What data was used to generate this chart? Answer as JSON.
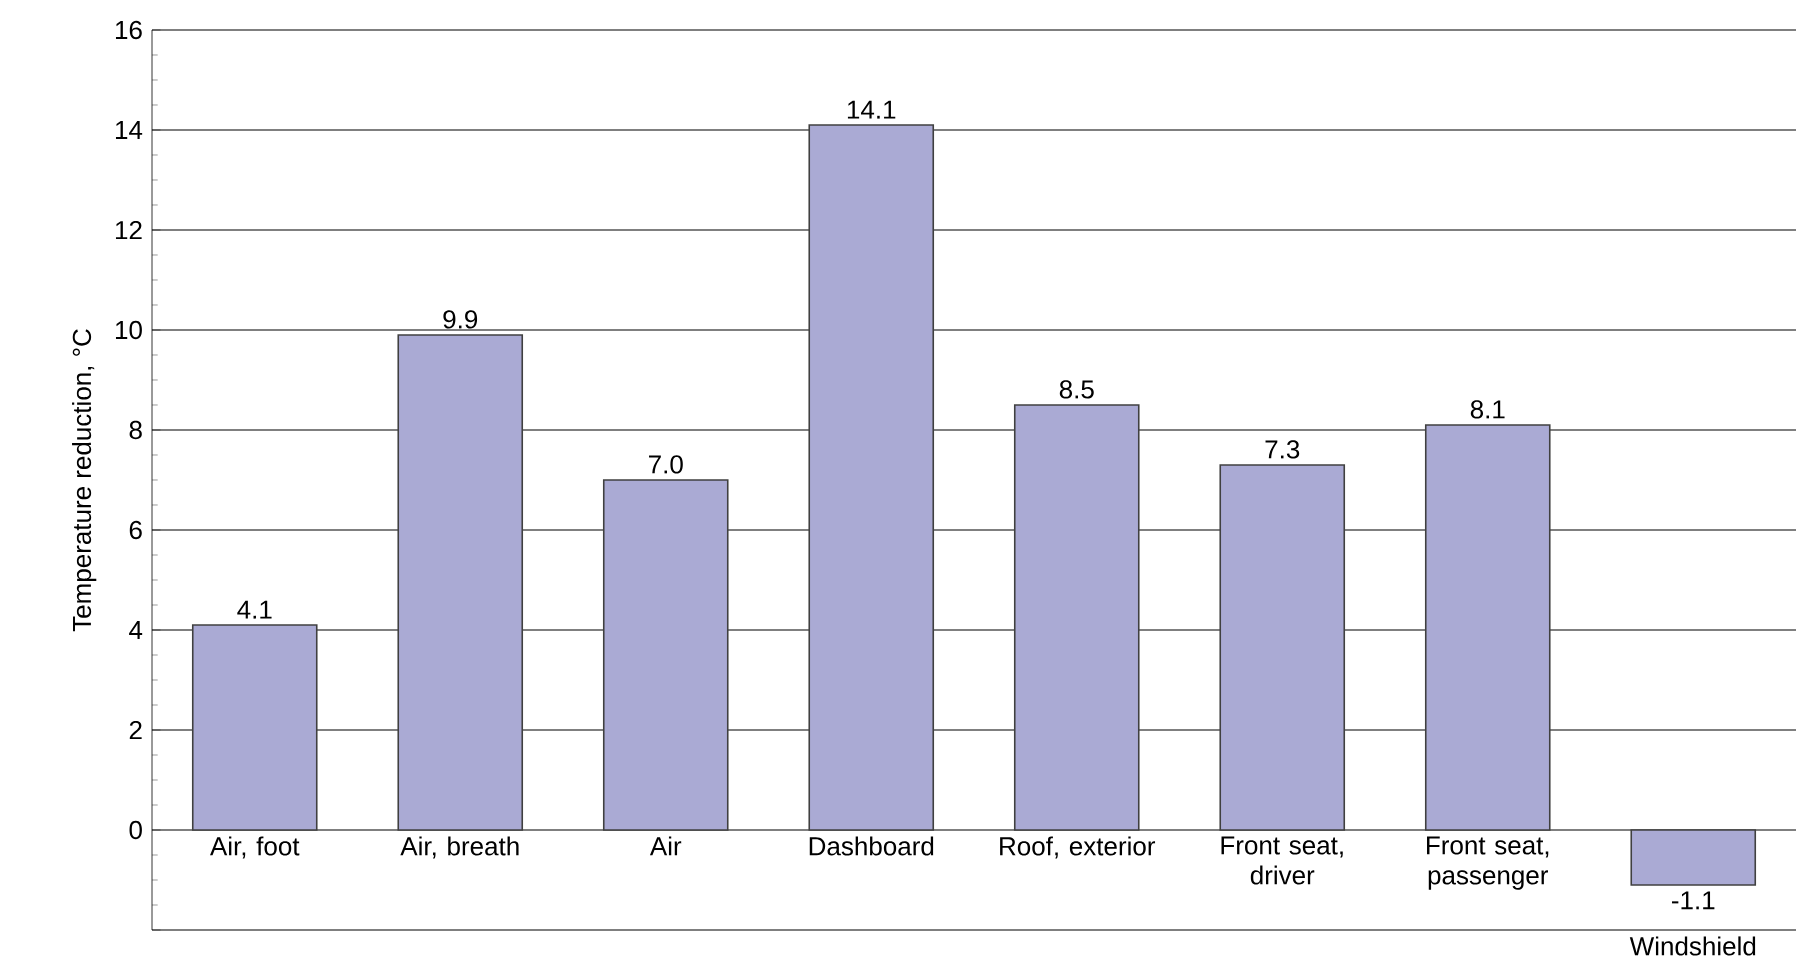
{
  "chart_data": {
    "type": "bar",
    "ylabel": "Temperature reduction, °C",
    "categories": [
      "Air, foot",
      "Air, breath",
      "Air",
      "Dashboard",
      "Roof, exterior",
      "Front seat, driver",
      "Front seat, passenger",
      "Windshield"
    ],
    "values": [
      4.1,
      9.9,
      7.0,
      14.1,
      8.5,
      7.3,
      8.1,
      -1.1
    ],
    "value_labels": [
      "4.1",
      "9.9",
      "7.0",
      "14.1",
      "8.5",
      "7.3",
      "8.1",
      "-1.1"
    ],
    "color": "#aaaad4",
    "ylim": [
      -2,
      16
    ],
    "yticks": [
      {
        "value": -2,
        "label": null
      },
      0,
      2,
      4,
      6,
      8,
      10,
      12,
      14,
      16
    ],
    "grid": "y"
  }
}
